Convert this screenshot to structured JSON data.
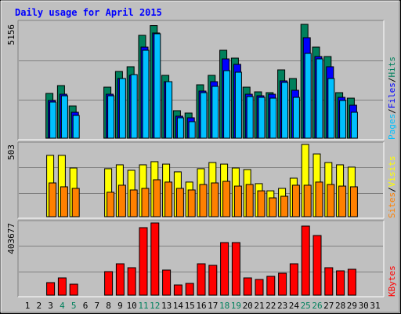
{
  "chart_data": {
    "type": "bar",
    "title": "Daily usage for April 2015",
    "categories": [
      "1",
      "2",
      "3",
      "4",
      "5",
      "6",
      "7",
      "8",
      "9",
      "10",
      "11",
      "12",
      "13",
      "14",
      "15",
      "16",
      "17",
      "18",
      "19",
      "20",
      "21",
      "22",
      "23",
      "24",
      "25",
      "26",
      "27",
      "28",
      "29",
      "30",
      "31"
    ],
    "highlighted_categories": [
      3,
      4,
      10,
      11,
      17,
      18,
      24,
      25
    ],
    "highlight_color": "#00805c",
    "legend_separator": "/",
    "panels": [
      {
        "ylim": [
          0,
          5156
        ],
        "yticks": [
          5156
        ],
        "series": [
          {
            "name": "Hits",
            "color": "#00805c",
            "values": [
              0,
              0,
              2027,
              2382,
              1458,
              0,
              0,
              2311,
              3022,
              3236,
              4658,
              5100,
              2845,
              1245,
              1138,
              2418,
              2845,
              3982,
              3627,
              2311,
              2098,
              2062,
              3094,
              2702,
              5156,
              4125,
              3698,
              2062,
              1813,
              0,
              0
            ]
          },
          {
            "name": "Files",
            "color": "#0000ff",
            "values": [
              0,
              0,
              1707,
              1991,
              1173,
              0,
              0,
              1991,
              2702,
              2845,
              4125,
              4765,
              2560,
              996,
              924,
              2134,
              2560,
              3591,
              3343,
              1991,
              1920,
              1991,
              2596,
              2169,
              4552,
              3698,
              3236,
              1849,
              1493,
              0,
              0
            ]
          },
          {
            "name": "Pages",
            "color": "#00c0ff",
            "values": [
              0,
              0,
              1636,
              1920,
              1031,
              0,
              0,
              1920,
              2702,
              2880,
              3982,
              4730,
              2560,
              924,
              747,
              2062,
              2347,
              3058,
              2987,
              1885,
              1849,
              1813,
              2525,
              1849,
              3840,
              3591,
              2702,
              1707,
              1173,
              0,
              0
            ]
          }
        ]
      },
      {
        "ylim": [
          0,
          503
        ],
        "yticks": [
          503
        ],
        "series": [
          {
            "name": "Visits",
            "color": "#ffff00",
            "values": [
              0,
              0,
              427,
              427,
              339,
              0,
              0,
              334,
              361,
              323,
              361,
              383,
              366,
              312,
              241,
              334,
              377,
              366,
              339,
              328,
              230,
              180,
              197,
              268,
              503,
              437,
              377,
              361,
              345,
              0,
              0
            ]
          },
          {
            "name": "Sites",
            "color": "#ff8000",
            "values": [
              0,
              0,
              235,
              208,
              197,
              0,
              0,
              170,
              219,
              186,
              197,
              257,
              241,
              197,
              186,
              224,
              235,
              246,
              213,
              224,
              180,
              131,
              142,
              219,
              219,
              241,
              224,
              213,
              208,
              0,
              0
            ]
          }
        ]
      },
      {
        "ylim": [
          0,
          403677
        ],
        "yticks": [
          403677
        ],
        "series": [
          {
            "name": "KBytes",
            "color": "#ff0000",
            "values": [
              0,
              0,
              70208,
              96536,
              61432,
              0,
              0,
              131640,
              175520,
              153580,
              377368,
              403677,
              140416,
              57044,
              65820,
              175520,
              166744,
              293996,
              293996,
              96536,
              87760,
              105312,
              122864,
              175520,
              386144,
              333488,
              153580,
              136028,
              144804,
              0,
              0
            ]
          }
        ]
      }
    ]
  }
}
